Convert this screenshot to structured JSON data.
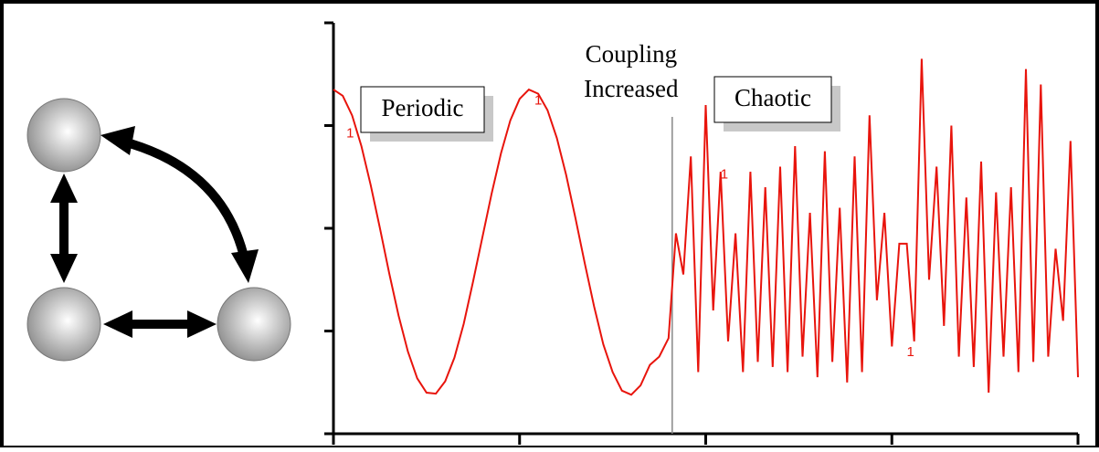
{
  "chart_data": {
    "type": "line",
    "annotations": [
      "Periodic",
      "Chaotic"
    ],
    "coupling_label": [
      "Coupling",
      "Increased"
    ],
    "coupling_x": 1.82,
    "point_labels": [
      {
        "text": "1",
        "x": 0.09,
        "y": 2.92
      },
      {
        "text": "1",
        "x": 1.1,
        "y": 3.24
      },
      {
        "text": "1",
        "x": 2.1,
        "y": 2.52
      },
      {
        "text": "1",
        "x": 3.1,
        "y": 0.79
      }
    ],
    "x": [
      0,
      0.05,
      0.1,
      0.15,
      0.2,
      0.25,
      0.3,
      0.35,
      0.4,
      0.45,
      0.5,
      0.55,
      0.6,
      0.65,
      0.7,
      0.75,
      0.8,
      0.85,
      0.9,
      0.95,
      1.0,
      1.05,
      1.1,
      1.15,
      1.2,
      1.25,
      1.3,
      1.35,
      1.4,
      1.45,
      1.5,
      1.55,
      1.6,
      1.65,
      1.7,
      1.75,
      1.8,
      1.84,
      1.88,
      1.92,
      1.96,
      2.0,
      2.04,
      2.08,
      2.12,
      2.16,
      2.2,
      2.24,
      2.28,
      2.32,
      2.36,
      2.4,
      2.44,
      2.48,
      2.52,
      2.56,
      2.6,
      2.64,
      2.68,
      2.72,
      2.76,
      2.8,
      2.84,
      2.88,
      2.92,
      2.96,
      3.0,
      3.04,
      3.08,
      3.12,
      3.16,
      3.2,
      3.24,
      3.28,
      3.32,
      3.36,
      3.4,
      3.44,
      3.48,
      3.52,
      3.56,
      3.6,
      3.64,
      3.68,
      3.72,
      3.76,
      3.8,
      3.84,
      3.88,
      3.92,
      3.96,
      4.0
    ],
    "values": [
      3.35,
      3.29,
      3.1,
      2.8,
      2.42,
      2.0,
      1.56,
      1.15,
      0.8,
      0.54,
      0.4,
      0.39,
      0.51,
      0.74,
      1.07,
      1.48,
      1.91,
      2.34,
      2.73,
      3.05,
      3.26,
      3.35,
      3.31,
      3.15,
      2.88,
      2.52,
      2.1,
      1.66,
      1.24,
      0.87,
      0.6,
      0.42,
      0.38,
      0.47,
      0.67,
      0.75,
      0.93,
      1.95,
      1.55,
      2.7,
      0.6,
      3.2,
      1.2,
      2.55,
      0.9,
      1.95,
      0.6,
      2.55,
      0.7,
      2.4,
      0.65,
      2.6,
      0.6,
      2.8,
      0.75,
      2.15,
      0.55,
      2.75,
      0.7,
      2.2,
      0.5,
      2.7,
      0.6,
      3.1,
      1.3,
      2.15,
      0.85,
      1.85,
      1.85,
      0.9,
      3.65,
      1.5,
      2.6,
      1.05,
      3.0,
      0.75,
      2.3,
      0.65,
      2.65,
      0.4,
      2.35,
      0.75,
      2.4,
      0.6,
      3.55,
      0.7,
      3.4,
      0.75,
      1.8,
      1.1,
      2.85,
      0.55
    ],
    "color": "#e8140c",
    "xlim": [
      0,
      4
    ],
    "xticks": [
      0,
      1,
      2,
      3,
      4
    ],
    "ylim": [
      0,
      4
    ],
    "yticks": [
      0,
      1,
      2,
      3,
      4
    ]
  }
}
